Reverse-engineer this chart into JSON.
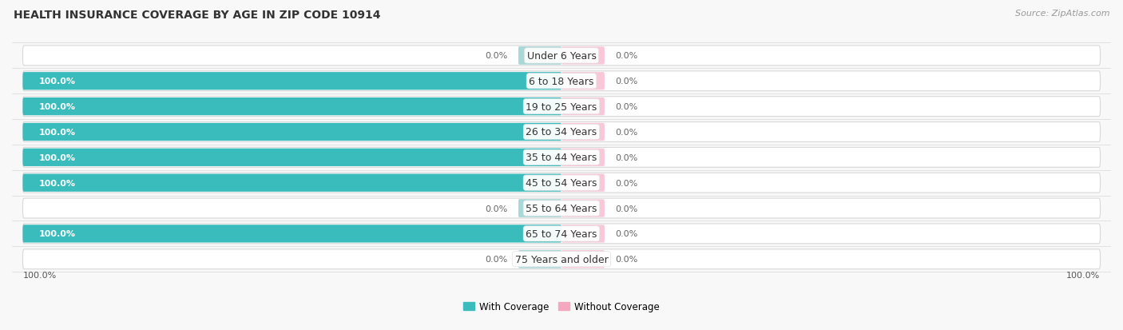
{
  "title": "HEALTH INSURANCE COVERAGE BY AGE IN ZIP CODE 10914",
  "source": "Source: ZipAtlas.com",
  "categories": [
    "Under 6 Years",
    "6 to 18 Years",
    "19 to 25 Years",
    "26 to 34 Years",
    "35 to 44 Years",
    "45 to 54 Years",
    "55 to 64 Years",
    "65 to 74 Years",
    "75 Years and older"
  ],
  "with_coverage": [
    0.0,
    100.0,
    100.0,
    100.0,
    100.0,
    100.0,
    0.0,
    100.0,
    0.0
  ],
  "without_coverage": [
    0.0,
    0.0,
    0.0,
    0.0,
    0.0,
    0.0,
    0.0,
    0.0,
    0.0
  ],
  "color_with": "#3bbcbc",
  "color_without": "#f4a8c0",
  "color_with_light": "#a8d8d8",
  "color_without_light": "#f9c8d8",
  "row_bg": "#f2f2f2",
  "row_border": "#e0e0e0",
  "bg_color": "#f8f8f8",
  "legend_with": "With Coverage",
  "legend_without": "Without Coverage",
  "title_fontsize": 10,
  "source_fontsize": 8,
  "label_fontsize": 8,
  "category_fontsize": 9,
  "value_fontsize": 8,
  "figsize": [
    14.06,
    4.14
  ],
  "dpi": 100
}
